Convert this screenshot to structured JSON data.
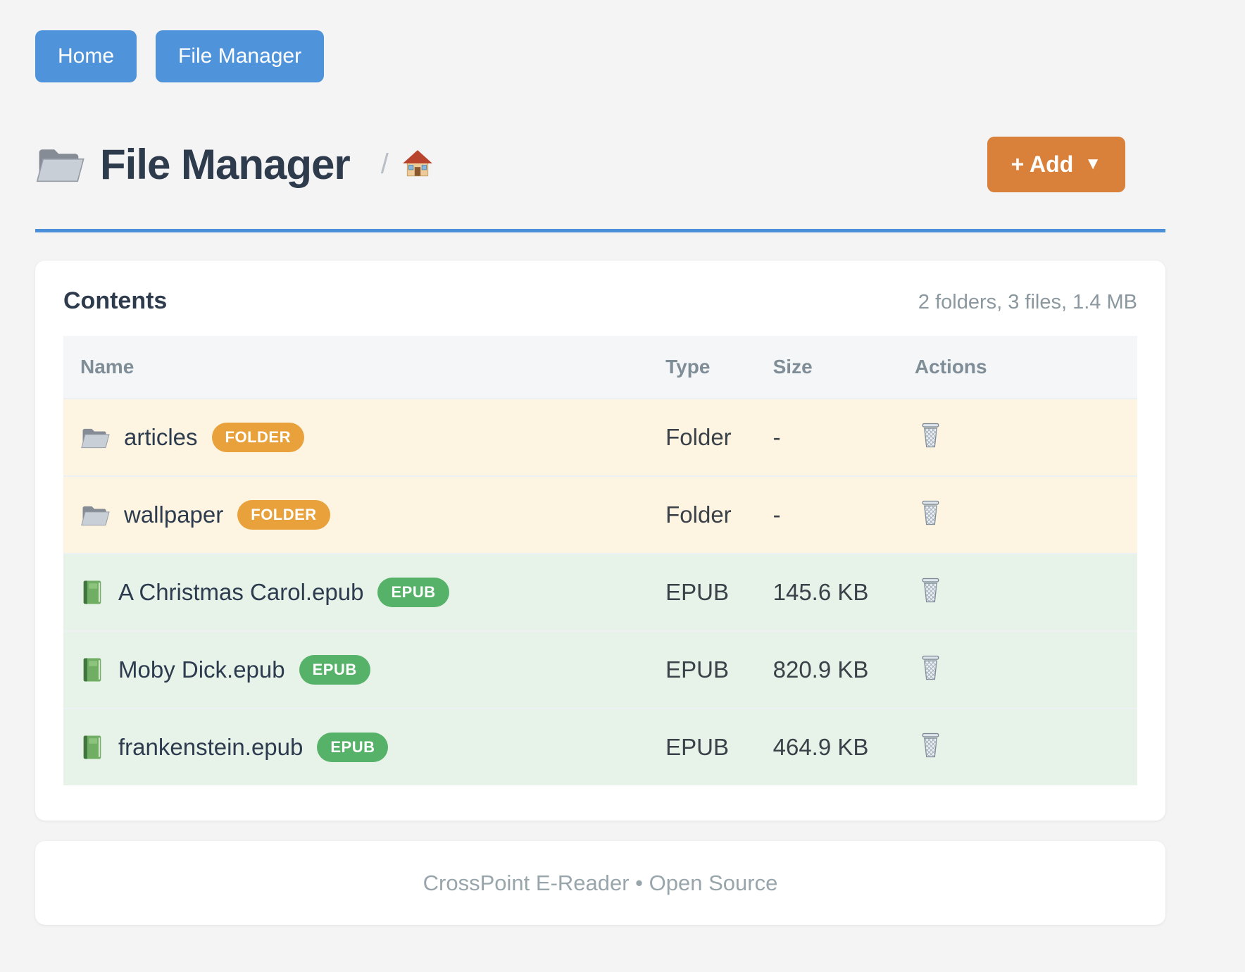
{
  "nav": {
    "home_label": "Home",
    "file_manager_label": "File Manager"
  },
  "header": {
    "title": "File Manager",
    "breadcrumb_separator": "/",
    "add_label": "+ Add",
    "add_caret": "▼"
  },
  "panel": {
    "title": "Contents",
    "summary": "2 folders, 3 files, 1.4 MB"
  },
  "table": {
    "headers": [
      "Name",
      "Type",
      "Size",
      "Actions"
    ],
    "rows": [
      {
        "name": "articles",
        "badge": "FOLDER",
        "type": "Folder",
        "size": "-",
        "kind": "folder",
        "icon": "folder-icon"
      },
      {
        "name": "wallpaper",
        "badge": "FOLDER",
        "type": "Folder",
        "size": "-",
        "kind": "folder",
        "icon": "folder-icon"
      },
      {
        "name": "A Christmas Carol.epub",
        "badge": "EPUB",
        "type": "EPUB",
        "size": "145.6 KB",
        "kind": "epub",
        "icon": "book-icon"
      },
      {
        "name": "Moby Dick.epub",
        "badge": "EPUB",
        "type": "EPUB",
        "size": "820.9 KB",
        "kind": "epub",
        "icon": "book-icon"
      },
      {
        "name": "frankenstein.epub",
        "badge": "EPUB",
        "type": "EPUB",
        "size": "464.9 KB",
        "kind": "epub",
        "icon": "book-icon"
      }
    ]
  },
  "footer": {
    "text": "CrossPoint E-Reader • Open Source"
  },
  "icons": {
    "title": "folder-icon",
    "breadcrumb": "home-icon",
    "folder_row": "folder-icon",
    "epub_row": "book-icon",
    "actions": "trash-icon",
    "add_caret": "caret-down-icon"
  },
  "colors": {
    "page_bg": "#f4f4f5",
    "accent_blue": "#4f93da",
    "title_rule_blue": "#4a8fd7",
    "accent_orange": "#d9813b",
    "badge_folder": "#e9a23b",
    "badge_epub": "#57b269",
    "row_folder_bg": "#fdf5e1",
    "row_epub_bg": "#e7f2e8",
    "table_header_bg": "#f4f6f8",
    "muted_text": "#8b98a0"
  }
}
